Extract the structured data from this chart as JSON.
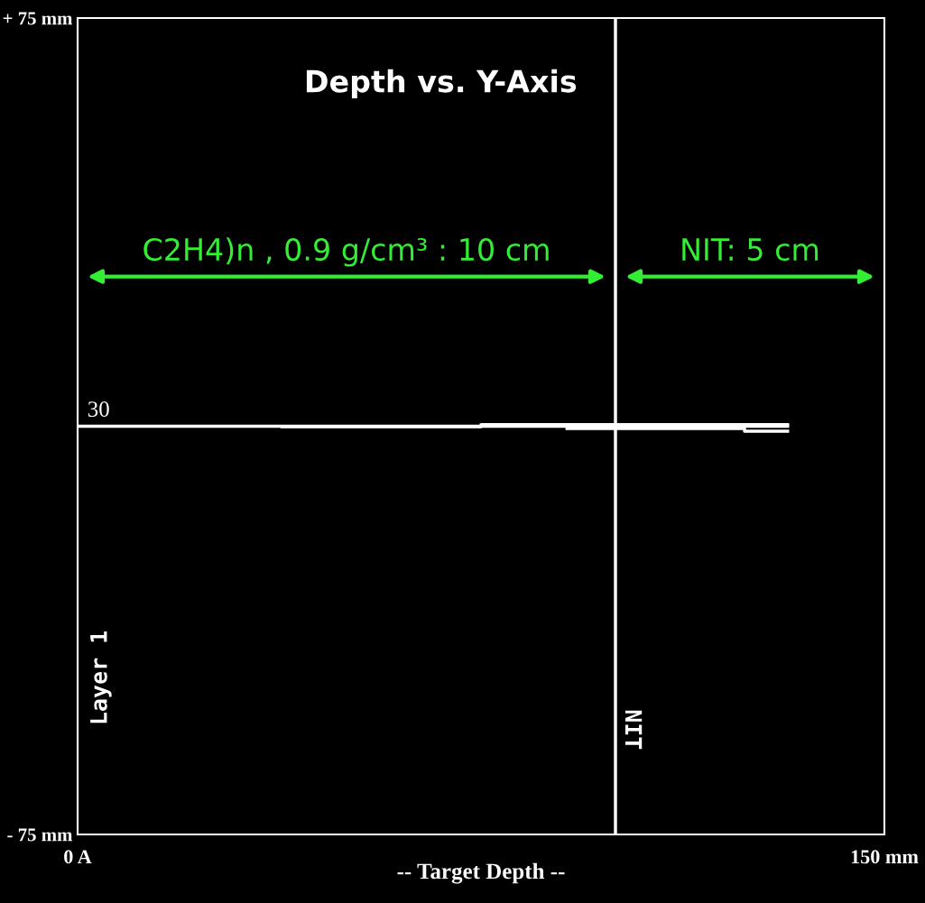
{
  "chart_data": {
    "type": "line",
    "title": "Depth vs. Y-Axis",
    "xlabel": "-- Target Depth --",
    "xlim": [
      0,
      150
    ],
    "ylim": [
      -75,
      75
    ],
    "xticks": [
      {
        "value": 0,
        "label": "0 A"
      },
      {
        "value": 150,
        "label": "150 mm"
      }
    ],
    "yticks": [
      {
        "value": 75,
        "label": "+ 75 mm"
      },
      {
        "value": -75,
        "label": "- 75 mm"
      }
    ],
    "series": [
      {
        "color": "#ffffff",
        "x": [
          0,
          132
        ],
        "values": [
          0,
          0
        ]
      },
      {
        "color": "#ffffff",
        "x": [
          38,
          75,
          75,
          132
        ],
        "values": [
          -0.1,
          -0.1,
          0.3,
          0.3
        ]
      },
      {
        "color": "#ffffff",
        "x": [
          91,
          124,
          124,
          132
        ],
        "values": [
          -0.4,
          -0.4,
          -0.9,
          -0.9
        ]
      }
    ],
    "ref_lines": [
      {
        "axis": "x",
        "value": 100,
        "label": "NIT",
        "color": "#ffffff"
      }
    ],
    "annotations": [
      "C2H4)n , 0.9 g/cm³ : 10 cm",
      "NIT: 5 cm",
      "30",
      "Layer 1"
    ],
    "legend": false,
    "marker": "none",
    "line_style": "solid"
  }
}
